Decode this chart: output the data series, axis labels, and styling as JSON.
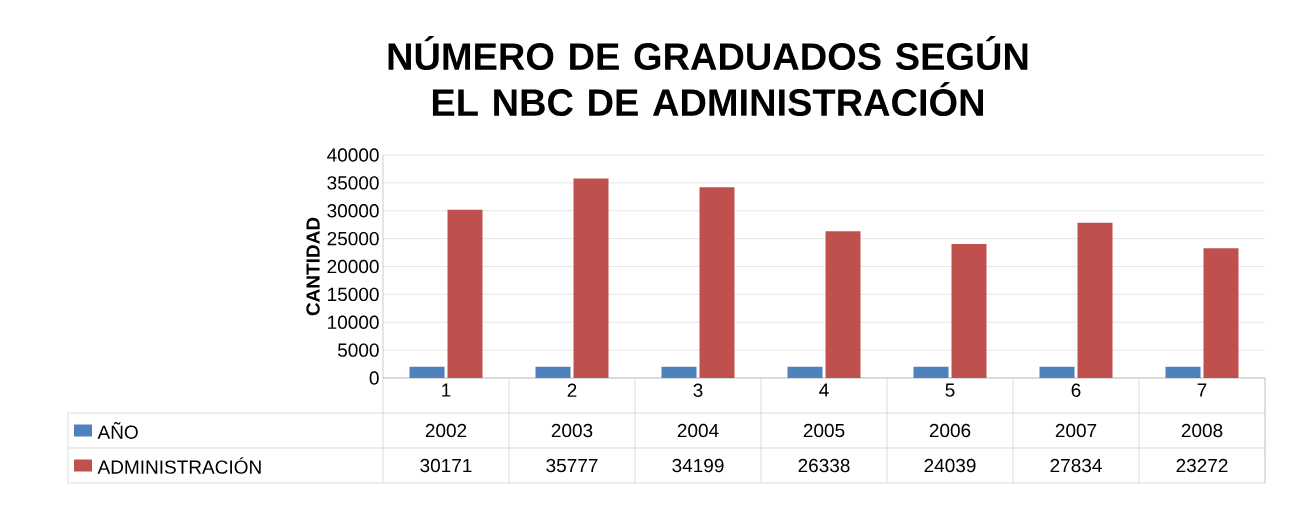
{
  "chart_data": {
    "type": "bar",
    "title": "NÚMERO DE GRADUADOS SEGÚN EL NBC DE ADMINISTRACIÓN",
    "ylabel": "CANTIDAD",
    "categories": [
      "1",
      "2",
      "3",
      "4",
      "5",
      "6",
      "7"
    ],
    "series": [
      {
        "name": "AÑO",
        "color": "#4f81bd",
        "values": [
          2002,
          2003,
          2004,
          2005,
          2006,
          2007,
          2008
        ]
      },
      {
        "name": "ADMINISTRACIÓN",
        "color": "#c0504d",
        "values": [
          30171,
          35777,
          34199,
          26338,
          24039,
          27834,
          23272
        ]
      }
    ],
    "ylim": [
      0,
      40000
    ],
    "yticks": [
      0,
      5000,
      10000,
      15000,
      20000,
      25000,
      30000,
      35000,
      40000
    ],
    "grid": "y",
    "legend": "bottom",
    "data_labels": true
  }
}
